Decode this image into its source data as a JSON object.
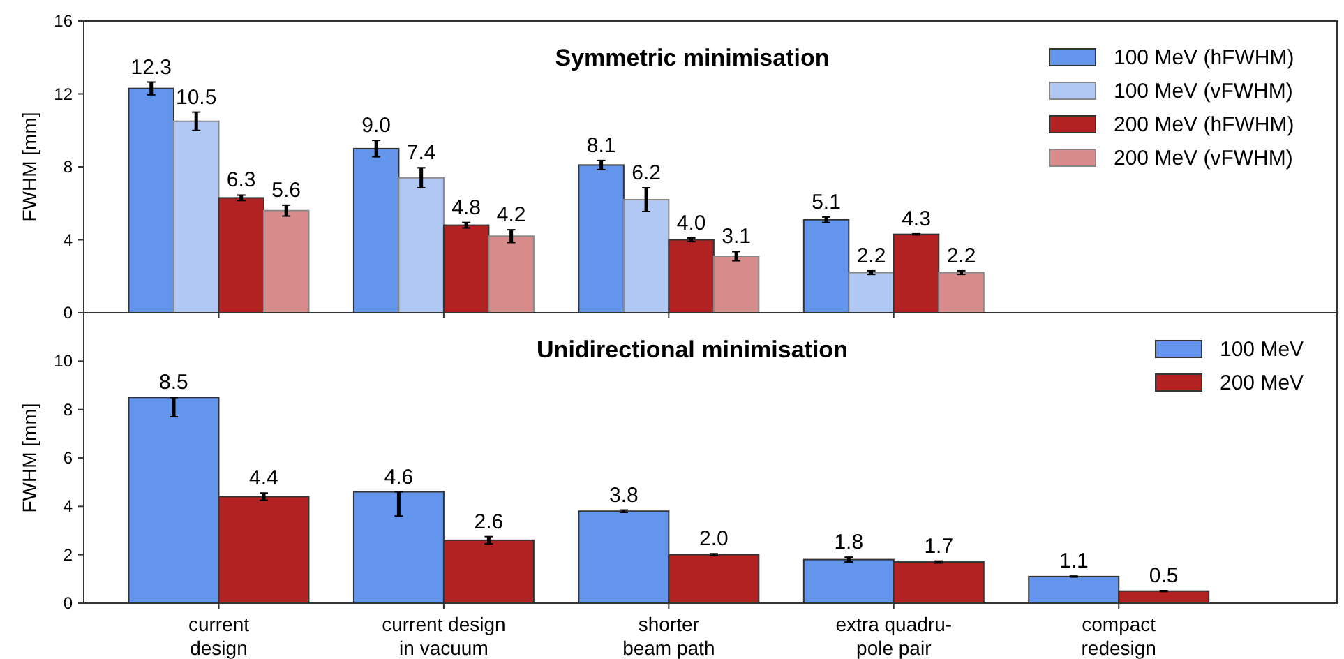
{
  "chart_data": [
    {
      "type": "bar",
      "title": "Symmetric minimisation",
      "ylabel": "FWHM [mm]",
      "categories": [
        null,
        null,
        null,
        null
      ],
      "ylim": [
        0,
        16
      ],
      "yticks": [
        0,
        4,
        8,
        12,
        16
      ],
      "tick_labels": "y",
      "legend": "top right",
      "series": [
        {
          "name": "100 MeV (hFWHM)",
          "color": "#6495ed",
          "values": [
            12.3,
            9.0,
            8.1,
            5.1
          ],
          "value_labels": [
            "12.3",
            "9.0",
            "8.1",
            "5.1"
          ],
          "errors": [
            0.35,
            0.45,
            0.25,
            0.15
          ]
        },
        {
          "name": "100 MeV (vFWHM)",
          "color": "#b0c8f3",
          "values": [
            10.5,
            7.4,
            6.2,
            2.2
          ],
          "value_labels": [
            "10.5",
            "7.4",
            "6.2",
            "2.2"
          ],
          "errors": [
            0.5,
            0.55,
            0.65,
            0.1
          ]
        },
        {
          "name": "200 MeV (hFWHM)",
          "color": "#b22222",
          "values": [
            6.3,
            4.8,
            4.0,
            4.3
          ],
          "value_labels": [
            "6.3",
            "4.8",
            "4.0",
            "4.3"
          ],
          "errors": [
            0.15,
            0.15,
            0.1,
            0.03
          ]
        },
        {
          "name": "200 MeV (vFWHM)",
          "color": "#d98c8c",
          "values": [
            5.6,
            4.2,
            3.1,
            2.2
          ],
          "value_labels": [
            "5.6",
            "4.2",
            "3.1",
            "2.2"
          ],
          "errors": [
            0.3,
            0.35,
            0.25,
            0.1
          ]
        }
      ]
    },
    {
      "type": "bar",
      "title": "Unidirectional minimisation",
      "ylabel": "FWHM [mm]",
      "categories": [
        "current\ndesign",
        "current design\nin vacuum",
        "shorter\nbeam path",
        "extra quadru-\npole pair",
        "compact\nredesign"
      ],
      "ylim": [
        0,
        12
      ],
      "yticks": [
        0,
        2,
        4,
        6,
        8,
        10
      ],
      "legend": "top right",
      "series": [
        {
          "name": "100 MeV",
          "color": "#6495ed",
          "values": [
            8.5,
            4.6,
            3.8,
            1.8,
            1.1
          ],
          "value_labels": [
            "8.5",
            "4.6",
            "3.8",
            "1.8",
            "1.1"
          ],
          "errors": [
            [
              7.7,
              8.5
            ],
            [
              3.6,
              4.6
            ],
            0.05,
            0.1,
            0.02
          ]
        },
        {
          "name": "200 MeV",
          "color": "#b22222",
          "values": [
            4.4,
            2.6,
            2.0,
            1.7,
            0.5
          ],
          "value_labels": [
            "4.4",
            "2.6",
            "2.0",
            "1.7",
            "0.5"
          ],
          "errors": [
            0.15,
            0.15,
            0.04,
            0.04,
            0.02
          ]
        }
      ]
    }
  ]
}
